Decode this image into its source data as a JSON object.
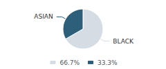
{
  "chart_data": {
    "type": "pie",
    "categories": [
      "BLACK",
      "ASIAN"
    ],
    "values": [
      66.7,
      33.3
    ],
    "value_labels": [
      "66.7%",
      "33.3%"
    ],
    "colors": [
      "#d6dce4",
      "#2e5f7a"
    ],
    "legend": "bottom"
  }
}
